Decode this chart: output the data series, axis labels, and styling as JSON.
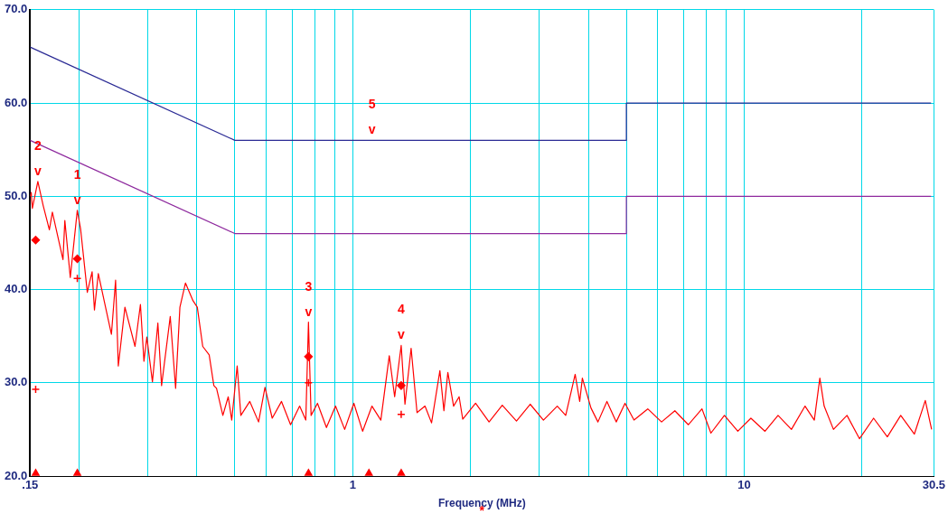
{
  "chart_data": {
    "type": "line",
    "xlabel": "Frequency (MHz)",
    "log": "x",
    "grid": true,
    "xlim": [
      0.15,
      30.5
    ],
    "xticks": [
      {
        "value": 0.15,
        "label": ".15"
      },
      {
        "value": 0.2,
        "label": null
      },
      {
        "value": 0.3,
        "label": null
      },
      {
        "value": 0.4,
        "label": null
      },
      {
        "value": 0.5,
        "label": null
      },
      {
        "value": 0.6,
        "label": null
      },
      {
        "value": 0.7,
        "label": null
      },
      {
        "value": 0.8,
        "label": null
      },
      {
        "value": 0.9,
        "label": null
      },
      1,
      {
        "value": 2,
        "label": null
      },
      {
        "value": 3,
        "label": null
      },
      {
        "value": 4,
        "label": null
      },
      {
        "value": 5,
        "label": null
      },
      {
        "value": 6,
        "label": null
      },
      {
        "value": 7,
        "label": null
      },
      {
        "value": 8,
        "label": null
      },
      {
        "value": 9,
        "label": null
      },
      10,
      {
        "value": 20,
        "label": null
      },
      {
        "value": 30.5,
        "label": "30.5"
      }
    ],
    "ylim": [
      20,
      70
    ],
    "yticks": [
      {
        "value": 20,
        "label": "20.0"
      },
      {
        "value": 30,
        "label": "30.0"
      },
      {
        "value": 40,
        "label": "40.0"
      },
      {
        "value": 50,
        "label": "50.0"
      },
      {
        "value": 60,
        "label": "60.0"
      },
      {
        "value": 70,
        "label": "70.0"
      }
    ],
    "series": [
      {
        "color": "#2b2b95",
        "x": [
          0.15,
          0.5,
          5,
          5,
          30
        ],
        "values": [
          66,
          56,
          56,
          60,
          60
        ]
      },
      {
        "color": "#8e2a9e",
        "x": [
          0.15,
          0.5,
          5,
          5,
          30
        ],
        "values": [
          56,
          46,
          46,
          50,
          50
        ]
      },
      {
        "color": "#ff0000",
        "x": [
          0.15,
          0.151,
          0.152,
          0.157,
          0.162,
          0.168,
          0.171,
          0.182,
          0.184,
          0.19,
          0.198,
          0.202,
          0.21,
          0.216,
          0.219,
          0.224,
          0.242,
          0.248,
          0.252,
          0.262,
          0.278,
          0.287,
          0.293,
          0.298,
          0.308,
          0.318,
          0.325,
          0.342,
          0.353,
          0.362,
          0.374,
          0.391,
          0.401,
          0.414,
          0.43,
          0.442,
          0.449,
          0.466,
          0.481,
          0.491,
          0.507,
          0.518,
          0.546,
          0.575,
          0.597,
          0.623,
          0.658,
          0.694,
          0.732,
          0.759,
          0.771,
          0.783,
          0.813,
          0.857,
          0.904,
          0.954,
          1.007,
          1.06,
          1.12,
          1.18,
          1.24,
          1.28,
          1.33,
          1.36,
          1.41,
          1.46,
          1.53,
          1.59,
          1.67,
          1.71,
          1.75,
          1.81,
          1.87,
          1.91,
          2.06,
          2.23,
          2.41,
          2.62,
          2.84,
          3.07,
          3.33,
          3.5,
          3.7,
          3.8,
          3.86,
          4.06,
          4.23,
          4.46,
          4.71,
          4.96,
          5.23,
          5.67,
          6.15,
          6.65,
          7.2,
          7.8,
          8.22,
          8.9,
          9.63,
          10.4,
          11.3,
          12.2,
          13.2,
          14.3,
          15.1,
          15.6,
          16,
          16.9,
          18.3,
          19.7,
          21.4,
          23.2,
          25.1,
          27.2,
          29,
          30.1
        ],
        "values": [
          50.0,
          50.4,
          48.7,
          51.6,
          49.0,
          46.4,
          48.3,
          43.2,
          47.4,
          41.3,
          48.5,
          46.4,
          39.7,
          41.9,
          37.8,
          41.7,
          35.2,
          41.0,
          31.8,
          38.1,
          33.9,
          38.4,
          32.3,
          34.9,
          30.1,
          36.4,
          29.7,
          37.1,
          29.4,
          38.1,
          40.7,
          38.8,
          38.1,
          33.9,
          33.0,
          29.7,
          29.4,
          26.5,
          28.5,
          26.0,
          31.8,
          26.5,
          28.0,
          25.8,
          29.5,
          26.2,
          28.0,
          25.5,
          27.5,
          26.0,
          36.5,
          26.5,
          27.8,
          25.2,
          27.5,
          25.0,
          27.8,
          24.8,
          27.5,
          26.0,
          32.9,
          28.5,
          34.0,
          27.7,
          33.7,
          26.8,
          27.5,
          25.7,
          31.3,
          27.0,
          31.1,
          27.5,
          28.5,
          26.1,
          27.8,
          25.8,
          27.6,
          25.9,
          27.7,
          26.0,
          27.5,
          26.5,
          30.9,
          28.0,
          30.5,
          27.3,
          25.8,
          28.0,
          25.8,
          27.8,
          26.0,
          27.2,
          25.8,
          27.0,
          25.5,
          27.2,
          24.6,
          26.5,
          24.8,
          26.2,
          24.8,
          26.5,
          25.0,
          27.5,
          26.0,
          30.5,
          27.5,
          25.0,
          26.5,
          24.0,
          26.2,
          24.2,
          26.5,
          24.5,
          28.1,
          25.0
        ]
      },
      {
        "type": "scatter",
        "marker": "diamond",
        "color": "#ff0000",
        "x": [
          0.155,
          0.198,
          0.771,
          1.33
        ],
        "values": [
          45.3,
          43.3,
          32.8,
          29.7
        ]
      },
      {
        "type": "scatter",
        "marker": "cross",
        "color": "#ff0000",
        "x": [
          0.155,
          0.198,
          0.771,
          1.33
        ],
        "values": [
          29.3,
          41.2,
          30.0,
          26.6
        ]
      },
      {
        "type": "scatter",
        "marker": "triangle",
        "color": "#ff0000",
        "x": [
          0.155,
          0.198,
          0.771,
          1.1,
          1.33
        ],
        "values": [
          20.3,
          20.3,
          20.3,
          20.3,
          20.3
        ]
      }
    ],
    "annotations": [
      {
        "text": "v",
        "x": 0.157,
        "y": 51.6
      },
      {
        "text": "2",
        "x": 0.157,
        "y": 51.6
      },
      {
        "text": "v",
        "x": 0.198,
        "y": 48.5
      },
      {
        "text": "1",
        "x": 0.198,
        "y": 48.5
      },
      {
        "text": "v",
        "x": 0.771,
        "y": 36.5
      },
      {
        "text": "3",
        "x": 0.771,
        "y": 36.5
      },
      {
        "text": "v",
        "x": 1.33,
        "y": 34.0
      },
      {
        "text": "4",
        "x": 1.33,
        "y": 34.0
      },
      {
        "text": "v",
        "x": 1.12,
        "y": 56
      },
      {
        "text": "5",
        "x": 1.12,
        "y": 56
      },
      "*"
    ]
  }
}
